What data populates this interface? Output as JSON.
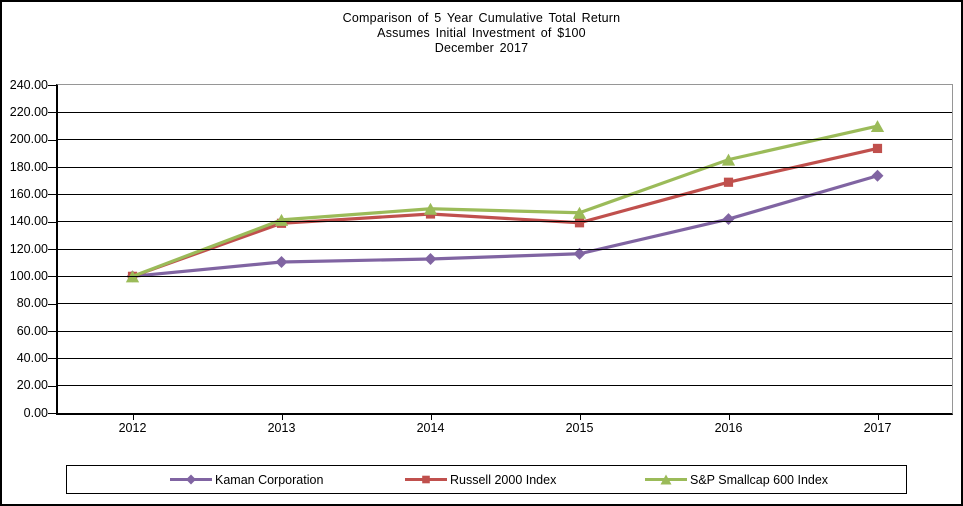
{
  "title": {
    "line1": "Comparison of 5 Year Cumulative Total Return",
    "line2": "Assumes Initial Investment of $100",
    "line3": "December 2017"
  },
  "colors": {
    "kaman_purple": "#8064A2",
    "russell_red": "#C0504D",
    "sp600_green": "#9BBB59",
    "gridline": "#000000",
    "plot_border": "#969696",
    "axis": "#000000",
    "background": "#FFFFFF"
  },
  "chart_data": {
    "type": "line",
    "title": "Comparison of 5 Year Cumulative Total Return",
    "subtitle": "Assumes Initial Investment of $100",
    "date_label": "December 2017",
    "categories": [
      "2012",
      "2013",
      "2014",
      "2015",
      "2016",
      "2017"
    ],
    "series": [
      {
        "name": "Kaman Corporation",
        "color": "#8064A2",
        "marker": "diamond",
        "values": [
          100.0,
          110.5,
          112.7,
          116.5,
          141.9,
          173.6
        ]
      },
      {
        "name": "Russell 2000 Index",
        "color": "#C0504D",
        "marker": "square",
        "values": [
          100.0,
          138.82,
          145.62,
          139.19,
          168.85,
          193.58
        ]
      },
      {
        "name": "S&P Smallcap 600 Index",
        "color": "#9BBB59",
        "marker": "triangle",
        "values": [
          100.0,
          141.31,
          149.45,
          146.5,
          185.41,
          209.94
        ]
      }
    ],
    "ylim": [
      0,
      240
    ],
    "y_step": 20,
    "y_tick_labels": [
      "0.00",
      "20.00",
      "40.00",
      "60.00",
      "80.00",
      "100.00",
      "120.00",
      "140.00",
      "160.00",
      "180.00",
      "200.00",
      "220.00",
      "240.00"
    ],
    "grid": true,
    "legend_position": "bottom"
  }
}
